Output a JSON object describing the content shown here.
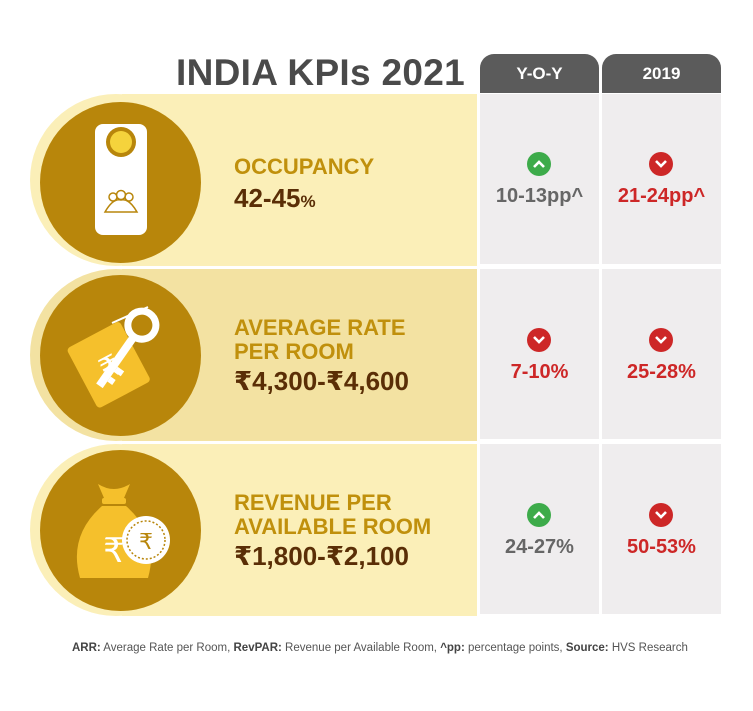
{
  "title": "INDIA KPIs 2021",
  "columns": {
    "yoy": "Y-O-Y",
    "y2019": "2019"
  },
  "rows": [
    {
      "icon": "door-hanger-icon",
      "label_line1": "OCCUPANCY",
      "label_line2": "",
      "value": "42-45",
      "value_suffix": "%",
      "yoy": {
        "direction": "up",
        "value": "10-13pp^"
      },
      "y2019": {
        "direction": "down",
        "value": "21-24pp^"
      }
    },
    {
      "icon": "key-tag-icon",
      "label_line1": "AVERAGE RATE",
      "label_line2": "PER ROOM",
      "value": "₹4,300-₹4,600",
      "value_suffix": "",
      "yoy": {
        "direction": "down",
        "value": "7-10%"
      },
      "y2019": {
        "direction": "down",
        "value": "25-28%"
      }
    },
    {
      "icon": "money-bag-icon",
      "label_line1": "REVENUE PER",
      "label_line2": "AVAILABLE ROOM",
      "value": "₹1,800-₹2,100",
      "value_suffix": "",
      "yoy": {
        "direction": "up",
        "value": "24-27%"
      },
      "y2019": {
        "direction": "down",
        "value": "50-53%"
      }
    }
  ],
  "footer": {
    "arr_key": "ARR:",
    "arr_text": " Average Rate per Room, ",
    "revpar_key": "RevPAR:",
    "revpar_text": " Revenue per Available Room, ",
    "pp_key": "^pp:",
    "pp_text": " percentage points, ",
    "source_key": "Source:",
    "source_text": " HVS Research"
  },
  "colors": {
    "band_light": "#fbefb8",
    "band_dark": "#f3e2a2",
    "circle": "#b8860b",
    "label": "#c0900c",
    "value": "#5a2e06",
    "header": "#5b5b5b",
    "up": "#3dab4a",
    "down": "#cd2727"
  }
}
